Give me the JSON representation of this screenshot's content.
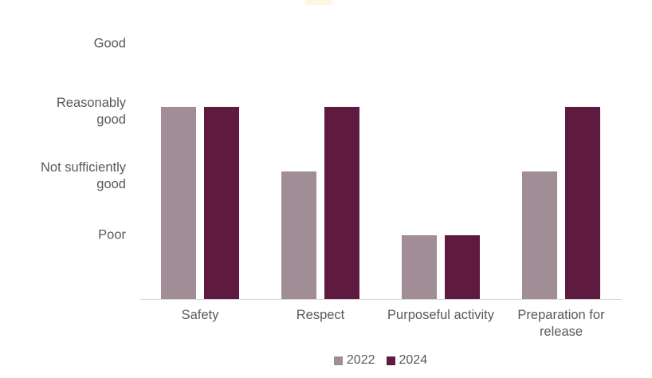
{
  "chart_data": {
    "type": "bar",
    "title": "",
    "categories": [
      "Safety",
      "Respect",
      "Purposeful activity",
      "Preparation for release"
    ],
    "y_tick_labels": [
      "Good",
      "Reasonably good",
      "Not sufficiently good",
      "Poor"
    ],
    "y_value_map": {
      "Poor": 1,
      "Not sufficiently good": 2,
      "Reasonably good": 3,
      "Good": 4
    },
    "ylim": [
      0,
      4
    ],
    "grid": false,
    "legend_position": "bottom",
    "series": [
      {
        "name": "2022",
        "color": "#A08D95",
        "ratings": [
          "Reasonably good",
          "Not sufficiently good",
          "Poor",
          "Not sufficiently good"
        ],
        "values": [
          3,
          2,
          1,
          2
        ]
      },
      {
        "name": "2024",
        "color": "#5F1A3F",
        "ratings": [
          "Reasonably good",
          "Reasonably good",
          "Poor",
          "Reasonably good"
        ],
        "values": [
          3,
          3,
          1,
          3
        ]
      }
    ]
  },
  "colors": {
    "axis_line": "#D9D9D9",
    "text": "#595959",
    "top_artifact": "#FBF7E3"
  }
}
